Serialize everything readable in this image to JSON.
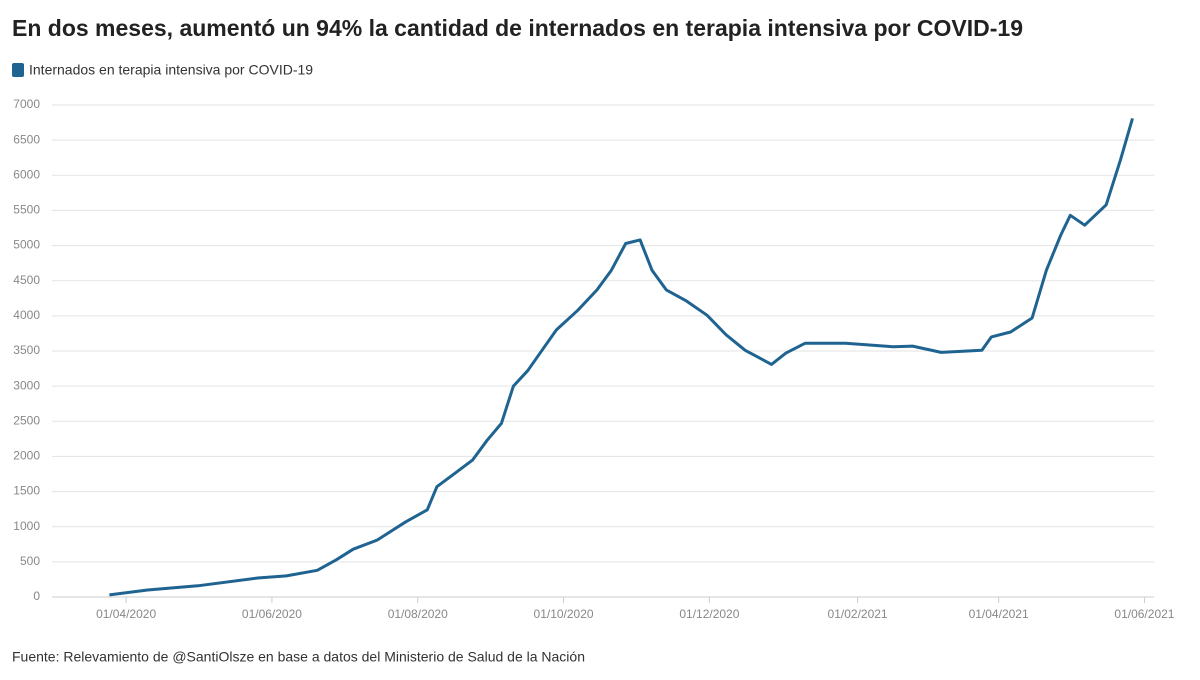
{
  "chart_data": {
    "type": "line",
    "title": "En dos meses, aumentó un 94% la cantidad de internados en terapia intensiva por COVID-19",
    "source": "Fuente: Relevamiento de @SantiOlsze en base a datos del Ministerio de Salud de la Nación",
    "x": [
      "25/03/2020",
      "10/04/2020",
      "01/05/2020",
      "26/05/2020",
      "07/06/2020",
      "20/06/2020",
      "28/06/2020",
      "05/07/2020",
      "15/07/2020",
      "27/07/2020",
      "05/08/2020",
      "09/08/2020",
      "15/08/2020",
      "24/08/2020",
      "30/08/2020",
      "05/09/2020",
      "10/09/2020",
      "16/09/2020",
      "22/09/2020",
      "28/09/2020",
      "07/10/2020",
      "15/10/2020",
      "21/10/2020",
      "27/10/2020",
      "02/11/2020",
      "07/11/2020",
      "13/11/2020",
      "21/11/2020",
      "30/11/2020",
      "08/12/2020",
      "16/12/2020",
      "27/12/2020",
      "02/01/2021",
      "10/01/2021",
      "27/01/2021",
      "16/02/2021",
      "24/02/2021",
      "08/03/2021",
      "25/03/2021",
      "29/03/2021",
      "06/04/2021",
      "15/04/2021",
      "21/04/2021",
      "27/04/2021",
      "01/05/2021",
      "07/05/2021",
      "16/05/2021",
      "22/05/2021",
      "27/05/2021"
    ],
    "series": [
      {
        "name": "Internados en terapia intensiva por COVID-19",
        "color": "#1f6391",
        "values": [
          30,
          100,
          160,
          270,
          300,
          380,
          530,
          680,
          810,
          1070,
          1240,
          1570,
          1720,
          1950,
          2230,
          2470,
          3000,
          3220,
          3510,
          3800,
          4080,
          4370,
          4650,
          5030,
          5080,
          4650,
          4370,
          4220,
          4010,
          3730,
          3510,
          3310,
          3470,
          3610,
          3610,
          3560,
          3570,
          3480,
          3510,
          3700,
          3770,
          3970,
          4650,
          5150,
          5430,
          5290,
          5580,
          6220,
          6810
        ]
      }
    ],
    "xlim": [
      "01/03/2020",
      "05/06/2021"
    ],
    "xticks": [
      "01/04/2020",
      "01/06/2020",
      "01/08/2020",
      "01/10/2020",
      "01/12/2020",
      "01/02/2021",
      "01/04/2021",
      "01/06/2021"
    ],
    "ylim": [
      0,
      7000
    ],
    "yticks": [
      0,
      500,
      1000,
      1500,
      2000,
      2500,
      3000,
      3500,
      4000,
      4500,
      5000,
      5500,
      6000,
      6500,
      7000
    ],
    "grid": true
  }
}
